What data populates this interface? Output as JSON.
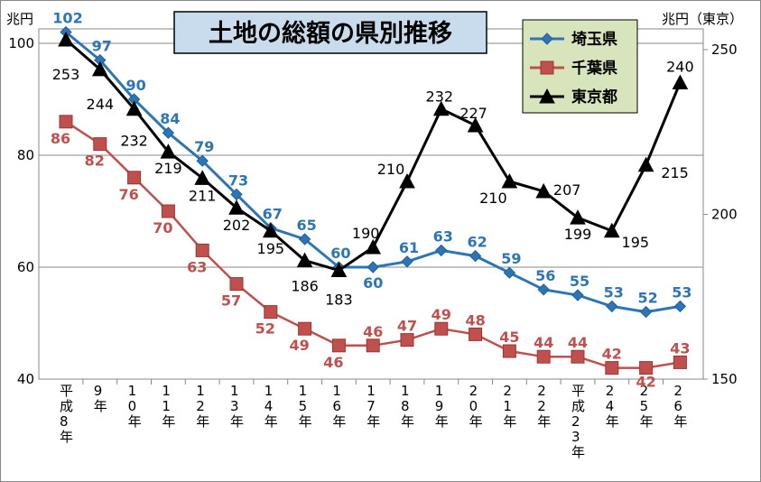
{
  "chart_data": {
    "type": "line",
    "title": "土地の総額の県別推移",
    "ylabel_left": "兆円",
    "ylabel_right": "兆円（東京）",
    "ylim_left": [
      40,
      100
    ],
    "ylim_right": [
      150,
      250
    ],
    "yticks_left": [
      "40",
      "60",
      "80",
      "100"
    ],
    "yticks_right": [
      "150",
      "200",
      "250"
    ],
    "grid": "horizontal",
    "legend_position": "top-right",
    "categories": [
      "平成8年",
      "9年",
      "10年",
      "11年",
      "12年",
      "13年",
      "14年",
      "15年",
      "16年",
      "17年",
      "18年",
      "19年",
      "20年",
      "21年",
      "22年",
      "平成23年",
      "24年",
      "25年",
      "26年"
    ],
    "series": [
      {
        "name": "埼玉県",
        "axis": "left",
        "color": "#2e75b6",
        "marker": "diamond",
        "values": [
          102,
          97,
          90,
          84,
          79,
          73,
          67,
          65,
          60,
          60,
          61,
          63,
          62,
          59,
          56,
          55,
          53,
          52,
          53
        ],
        "labels": [
          "102",
          "97",
          "90",
          "84",
          "79",
          "73",
          "67",
          "65",
          "60",
          "60",
          "61",
          "63",
          "62",
          "59",
          "56",
          "55",
          "53",
          "52",
          "53"
        ]
      },
      {
        "name": "千葉県",
        "axis": "left",
        "color": "#c0504d",
        "marker": "square",
        "values": [
          86,
          82,
          76,
          70,
          63,
          57,
          52,
          49,
          46,
          46,
          47,
          49,
          48,
          45,
          44,
          44,
          42,
          42,
          43
        ],
        "labels": [
          "86",
          "82",
          "76",
          "70",
          "63",
          "57",
          "52",
          "49",
          "46",
          "46",
          "47",
          "49",
          "48",
          "45",
          "44",
          "44",
          "42",
          "42",
          "43"
        ]
      },
      {
        "name": "東京都",
        "axis": "right",
        "color": "#000000",
        "marker": "triangle",
        "values": [
          253,
          244,
          232,
          219,
          211,
          202,
          195,
          186,
          183,
          190,
          210,
          232,
          227,
          210,
          207,
          199,
          195,
          215,
          240
        ],
        "labels": [
          "253",
          "244",
          "232",
          "219",
          "211",
          "202",
          "195",
          "186",
          "183",
          "190",
          "210",
          "232",
          "227",
          "210",
          "207",
          "199",
          "195",
          "215",
          "240"
        ]
      }
    ]
  }
}
